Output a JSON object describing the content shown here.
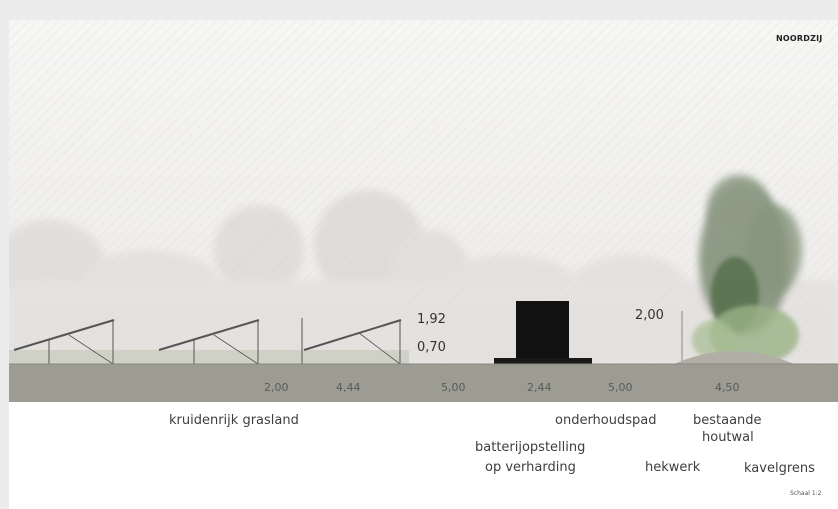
{
  "title": "NOORDZIJ",
  "scale_note": "Schaal 1:2",
  "heights": {
    "panel_high": "1,92",
    "panel_low": "0,70",
    "fence": "2,00"
  },
  "dimensions": [
    "2,00",
    "4,44",
    "5,00",
    "2,44",
    "5,00",
    "4,50"
  ],
  "zones": {
    "grassland": "kruidenrijk grasland",
    "battery_line1": "batterijopstelling",
    "battery_line2": "op verharding",
    "maintenance_path": "onderhoudspad",
    "fence": "hekwerk",
    "woodland_line1": "bestaande",
    "woodland_line2": "houtwal",
    "boundary": "kavelgrens"
  },
  "colors": {
    "ground": "#9c9c93",
    "battery": "#111111",
    "tree_dark": "#4f6b45",
    "tree_light": "#9bb387",
    "sky": "#f2f2f0"
  }
}
